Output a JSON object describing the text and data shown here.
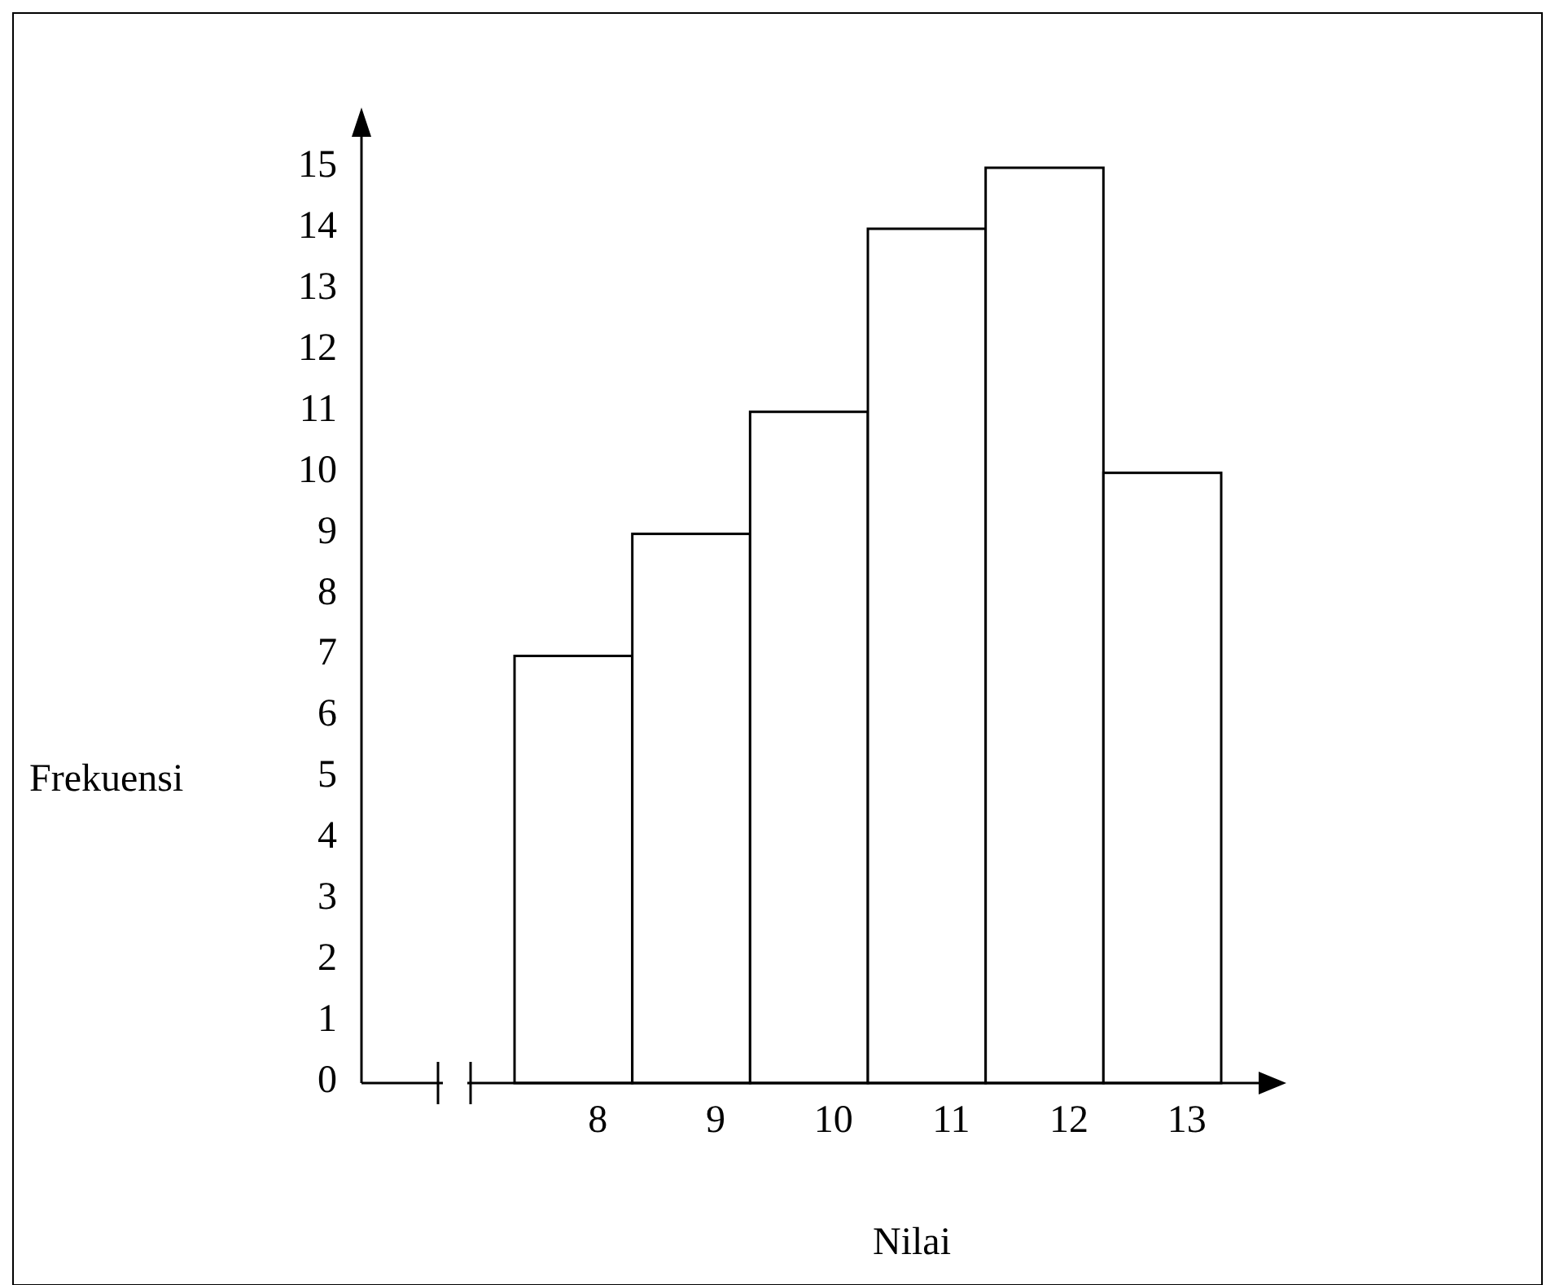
{
  "chart_data": {
    "type": "bar",
    "xlabel": "Nilai",
    "ylabel": "Frekuensi",
    "categories": [
      "8",
      "9",
      "10",
      "11",
      "12",
      "13"
    ],
    "values": [
      7,
      9,
      11,
      14,
      15,
      10
    ],
    "color": "#ffffff",
    "ylim": [
      0,
      15
    ],
    "yticks": [
      0,
      1,
      2,
      3,
      4,
      5,
      6,
      7,
      8,
      9,
      10,
      11,
      12,
      13,
      14,
      15
    ],
    "grid": false
  }
}
